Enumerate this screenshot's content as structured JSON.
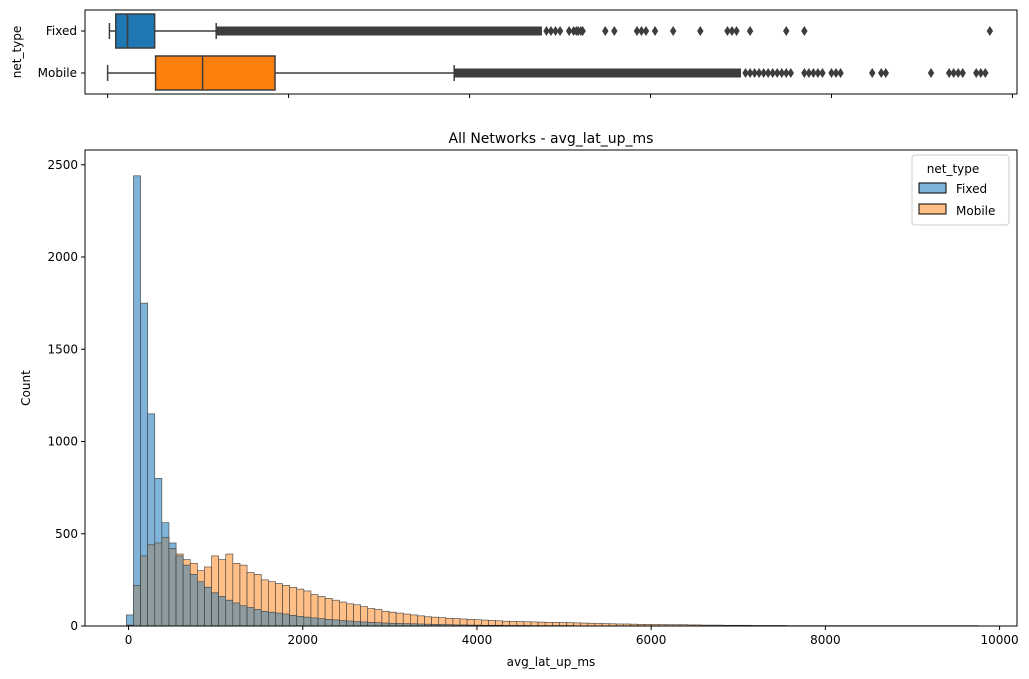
{
  "colors": {
    "fixed": "#1f77b4",
    "mobile": "#ff7f0e",
    "fixed_hist": "#7fb3d8",
    "mobile_hist": "#ffbf86",
    "overlap_hist": "#8e9c9f",
    "edge": "#3d3d3d",
    "axis": "#000000"
  },
  "chart_data": [
    {
      "type": "boxplot",
      "ylabel": "net_type",
      "orientation": "horizontal",
      "xlim": [
        -250,
        10050
      ],
      "x_ticks": [
        0,
        2000,
        4000,
        6000,
        8000,
        10000
      ],
      "x_tick_labels_shown": false,
      "categories": [
        "Fixed",
        "Mobile"
      ],
      "series": [
        {
          "name": "Fixed",
          "min": 20,
          "q1": 90,
          "median": 220,
          "q3": 520,
          "whisker_high": 1200,
          "outliers_dense_range": [
            1200,
            4800
          ],
          "outliers": [
            4850,
            4900,
            4950,
            5000,
            5100,
            5150,
            5180,
            5200,
            5230,
            5250,
            5500,
            5600,
            5850,
            5900,
            5950,
            6050,
            6250,
            6550,
            6850,
            6900,
            6950,
            7100,
            7500,
            7700,
            9750
          ]
        },
        {
          "name": "Mobile",
          "min": 0,
          "q1": 530,
          "median": 1050,
          "q3": 1850,
          "whisker_high": 3830,
          "outliers_dense_range": [
            3830,
            7000
          ],
          "outliers": [
            7050,
            7100,
            7150,
            7200,
            7250,
            7300,
            7350,
            7400,
            7450,
            7500,
            7550,
            7700,
            7750,
            7800,
            7850,
            7900,
            8000,
            8050,
            8100,
            8450,
            8550,
            8600,
            9100,
            9300,
            9350,
            9400,
            9450,
            9600,
            9650,
            9700
          ]
        }
      ]
    },
    {
      "type": "histogram",
      "title": "All Networks - avg_lat_up_ms",
      "xlabel": "avg_lat_up_ms",
      "ylabel": "Count",
      "xlim": [
        -500,
        10200
      ],
      "ylim": [
        0,
        2580
      ],
      "x_ticks": [
        0,
        2000,
        4000,
        6000,
        8000,
        10000
      ],
      "y_ticks": [
        0,
        500,
        1000,
        1500,
        2000,
        2500
      ],
      "bin_start": -25,
      "bin_width": 81.5,
      "legend": {
        "title": "net_type",
        "position": "top-right",
        "entries": [
          "Fixed",
          "Mobile"
        ]
      },
      "series": [
        {
          "name": "Fixed",
          "values": [
            60,
            2440,
            1750,
            1150,
            800,
            560,
            450,
            380,
            330,
            280,
            240,
            210,
            180,
            160,
            140,
            125,
            110,
            100,
            90,
            80,
            75,
            70,
            65,
            58,
            52,
            48,
            44,
            40,
            36,
            33,
            30,
            27,
            24,
            22,
            20,
            18,
            16,
            15,
            14,
            13,
            12,
            11,
            10,
            9,
            8,
            7,
            6,
            6,
            5,
            5,
            4,
            4,
            4,
            3,
            3,
            3,
            3,
            2,
            2,
            2,
            2,
            2,
            2,
            1,
            1,
            1,
            1,
            1,
            1,
            1,
            1,
            1,
            1,
            1,
            0,
            0,
            0,
            0,
            0,
            0,
            0,
            0,
            0,
            0,
            0,
            0,
            0,
            0,
            0,
            0,
            0,
            0,
            0,
            0,
            0,
            0,
            0,
            0,
            0,
            0,
            0,
            0,
            0,
            0,
            0,
            0,
            0,
            0,
            0,
            0,
            0,
            0,
            0,
            0,
            0,
            0,
            0,
            0,
            0,
            0
          ]
        },
        {
          "name": "Mobile",
          "values": [
            5,
            220,
            380,
            440,
            450,
            480,
            420,
            390,
            360,
            340,
            300,
            320,
            380,
            360,
            390,
            340,
            330,
            290,
            280,
            250,
            240,
            230,
            220,
            210,
            200,
            190,
            170,
            160,
            150,
            140,
            130,
            120,
            115,
            105,
            95,
            90,
            80,
            75,
            70,
            65,
            60,
            55,
            50,
            48,
            45,
            42,
            40,
            38,
            36,
            34,
            32,
            30,
            28,
            26,
            25,
            24,
            23,
            22,
            21,
            20,
            20,
            19,
            18,
            17,
            16,
            15,
            14,
            13,
            12,
            11,
            11,
            10,
            9,
            9,
            8,
            8,
            7,
            7,
            7,
            6,
            6,
            5,
            5,
            5,
            4,
            4,
            4,
            4,
            3,
            3,
            3,
            3,
            3,
            2,
            2,
            2,
            2,
            2,
            2,
            2,
            2,
            2,
            2,
            2,
            2,
            2,
            2,
            2,
            2,
            2,
            2,
            2,
            2,
            2,
            2,
            2,
            2,
            2,
            2,
            2
          ]
        }
      ]
    }
  ]
}
